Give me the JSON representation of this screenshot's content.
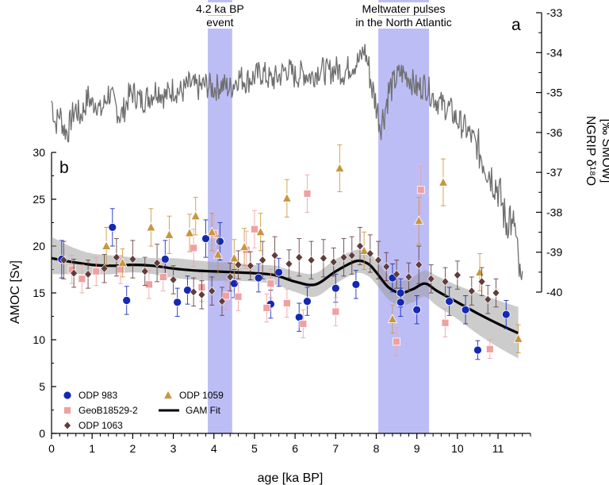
{
  "chart_data": {
    "type": "scatter",
    "panel_a": {
      "label": "a",
      "ylabel": "NGRIP δ¹⁸O\n[‰ SMOW]",
      "ylabel_line1": "NGRIP δ¹⁸O",
      "ylabel_line2": "[‰ SMOW]",
      "ylim": [
        -40,
        -33
      ],
      "yticks": [
        -33,
        -34,
        -35,
        -36,
        -37,
        -38,
        -39,
        -40
      ],
      "ytick_labels": [
        "-33",
        "-34",
        "-35",
        "-36",
        "-37",
        "-38",
        "-39",
        "-40"
      ],
      "series_color": "#6e6e6e",
      "anchors": [
        [
          0.0,
          -35.2
        ],
        [
          0.1,
          -35.8
        ],
        [
          0.2,
          -35.5
        ],
        [
          0.3,
          -35.9
        ],
        [
          0.4,
          -36.0
        ],
        [
          0.5,
          -35.6
        ],
        [
          0.6,
          -35.4
        ],
        [
          0.7,
          -35.6
        ],
        [
          0.8,
          -35.4
        ],
        [
          0.9,
          -35.1
        ],
        [
          1.0,
          -35.3
        ],
        [
          1.1,
          -35.2
        ],
        [
          1.2,
          -35.5
        ],
        [
          1.3,
          -35.3
        ],
        [
          1.4,
          -35.0
        ],
        [
          1.5,
          -35.2
        ],
        [
          1.6,
          -35.4
        ],
        [
          1.7,
          -35.6
        ],
        [
          1.8,
          -35.4
        ],
        [
          1.9,
          -35.1
        ],
        [
          2.0,
          -35.0
        ],
        [
          2.2,
          -35.2
        ],
        [
          2.4,
          -35.1
        ],
        [
          2.6,
          -34.9
        ],
        [
          2.8,
          -35.1
        ],
        [
          3.0,
          -34.9
        ],
        [
          3.2,
          -35.0
        ],
        [
          3.4,
          -34.8
        ],
        [
          3.6,
          -34.9
        ],
        [
          3.8,
          -34.8
        ],
        [
          4.0,
          -34.9
        ],
        [
          4.2,
          -34.8
        ],
        [
          4.4,
          -34.9
        ],
        [
          4.6,
          -34.6
        ],
        [
          4.8,
          -34.7
        ],
        [
          5.0,
          -34.6
        ],
        [
          5.2,
          -34.5
        ],
        [
          5.4,
          -34.7
        ],
        [
          5.6,
          -34.6
        ],
        [
          5.8,
          -34.4
        ],
        [
          6.0,
          -34.6
        ],
        [
          6.2,
          -34.5
        ],
        [
          6.4,
          -34.6
        ],
        [
          6.6,
          -34.4
        ],
        [
          6.8,
          -34.5
        ],
        [
          7.0,
          -34.4
        ],
        [
          7.2,
          -34.5
        ],
        [
          7.4,
          -34.3
        ],
        [
          7.6,
          -34.2
        ],
        [
          7.7,
          -33.9
        ],
        [
          7.8,
          -34.3
        ],
        [
          7.9,
          -34.9
        ],
        [
          8.0,
          -35.3
        ],
        [
          8.1,
          -35.8
        ],
        [
          8.2,
          -35.5
        ],
        [
          8.3,
          -35.0
        ],
        [
          8.4,
          -34.8
        ],
        [
          8.6,
          -34.5
        ],
        [
          8.8,
          -34.6
        ],
        [
          9.0,
          -34.9
        ],
        [
          9.2,
          -34.8
        ],
        [
          9.4,
          -35.1
        ],
        [
          9.6,
          -35.3
        ],
        [
          9.8,
          -35.4
        ],
        [
          10.0,
          -35.7
        ],
        [
          10.2,
          -35.9
        ],
        [
          10.4,
          -36.2
        ],
        [
          10.6,
          -36.6
        ],
        [
          10.8,
          -37.0
        ],
        [
          11.0,
          -37.4
        ],
        [
          11.1,
          -37.8
        ],
        [
          11.2,
          -38.3
        ],
        [
          11.3,
          -38.0
        ],
        [
          11.35,
          -38.6
        ],
        [
          11.4,
          -38.2
        ],
        [
          11.45,
          -38.8
        ],
        [
          11.5,
          -39.3
        ],
        [
          11.55,
          -39.8
        ],
        [
          11.6,
          -40.0
        ]
      ]
    },
    "panel_b": {
      "label": "b",
      "xlabel": "age [ka BP]",
      "ylabel": "AMOC [Sv]",
      "xlim": [
        0,
        11.8
      ],
      "ylim": [
        0,
        30
      ],
      "xticks": [
        0,
        1,
        2,
        3,
        4,
        5,
        6,
        7,
        8,
        9,
        10,
        11
      ],
      "xtick_labels": [
        "0",
        "1",
        "2",
        "3",
        "4",
        "5",
        "6",
        "7",
        "8",
        "9",
        "10",
        "11"
      ],
      "yticks": [
        0,
        5,
        10,
        15,
        20,
        25,
        30
      ],
      "ytick_labels": [
        "0",
        "5",
        "10",
        "15",
        "20",
        "25",
        "30"
      ],
      "bands": [
        {
          "label_line1": "4.2 ka BP",
          "label_line2": "event",
          "x0": 3.85,
          "x1": 4.45,
          "color": "#b9b9f5"
        },
        {
          "label_line1": "Meltwater pulses",
          "label_line2": "in the North Atlantic",
          "x0": 8.05,
          "x1": 9.3,
          "color": "#b9b9f5"
        }
      ],
      "series": [
        {
          "name": "ODP 983",
          "marker": "circle",
          "color": "#1428b4",
          "points": [
            [
              0.25,
              18.6,
              2.0
            ],
            [
              1.5,
              22.0,
              2.0
            ],
            [
              1.85,
              14.2,
              1.5
            ],
            [
              2.8,
              18.6,
              2.0
            ],
            [
              3.1,
              14.0,
              1.5
            ],
            [
              3.35,
              15.3,
              1.5
            ],
            [
              3.8,
              20.8,
              2.0
            ],
            [
              4.15,
              20.5,
              2.0
            ],
            [
              4.5,
              16.0,
              1.5
            ],
            [
              5.1,
              16.6,
              1.5
            ],
            [
              5.4,
              13.8,
              1.5
            ],
            [
              5.6,
              17.2,
              1.5
            ],
            [
              6.1,
              12.4,
              1.5
            ],
            [
              6.3,
              14.1,
              1.5
            ],
            [
              7.0,
              15.5,
              1.5
            ],
            [
              7.5,
              15.9,
              1.5
            ],
            [
              8.4,
              16.6,
              1.5
            ],
            [
              8.6,
              15.0,
              1.5
            ],
            [
              8.6,
              14.0,
              1.5
            ],
            [
              9.0,
              13.2,
              1.5
            ],
            [
              9.8,
              14.1,
              1.5
            ],
            [
              10.2,
              13.2,
              1.5
            ],
            [
              10.5,
              8.9,
              1.0
            ],
            [
              11.2,
              12.7,
              1.5
            ]
          ]
        },
        {
          "name": "GeoB18529-2",
          "marker": "square",
          "color": "#f0a0a0",
          "points": [
            [
              0.5,
              17.5,
              1.5
            ],
            [
              0.75,
              16.5,
              1.5
            ],
            [
              1.1,
              17.3,
              1.5
            ],
            [
              1.7,
              17.5,
              1.5
            ],
            [
              2.4,
              15.9,
              1.5
            ],
            [
              2.75,
              16.7,
              1.5
            ],
            [
              3.5,
              19.8,
              2.0
            ],
            [
              3.7,
              15.6,
              1.5
            ],
            [
              4.0,
              21.3,
              2.0
            ],
            [
              4.3,
              14.7,
              1.5
            ],
            [
              4.6,
              14.6,
              1.5
            ],
            [
              4.8,
              19.6,
              2.0
            ],
            [
              5.0,
              21.8,
              2.0
            ],
            [
              5.3,
              13.4,
              1.5
            ],
            [
              5.4,
              16.0,
              1.5
            ],
            [
              5.8,
              13.9,
              1.5
            ],
            [
              6.2,
              11.7,
              1.5
            ],
            [
              6.3,
              25.6,
              2.0
            ],
            [
              7.0,
              13.0,
              1.5
            ],
            [
              8.5,
              9.8,
              1.5
            ],
            [
              9.1,
              26.0,
              2.5
            ],
            [
              9.7,
              11.8,
              1.5
            ],
            [
              10.8,
              9.0,
              1.0
            ]
          ]
        },
        {
          "name": "ODP 1059",
          "marker": "triangle",
          "color": "#c8963c",
          "points": [
            [
              1.35,
              20.0,
              2.0
            ],
            [
              1.75,
              18.2,
              1.5
            ],
            [
              2.45,
              22.0,
              2.0
            ],
            [
              2.9,
              21.2,
              2.0
            ],
            [
              3.4,
              21.4,
              2.0
            ],
            [
              3.55,
              23.2,
              2.0
            ],
            [
              3.95,
              21.5,
              2.0
            ],
            [
              4.1,
              19.1,
              2.0
            ],
            [
              4.5,
              18.7,
              2.0
            ],
            [
              4.75,
              19.9,
              2.0
            ],
            [
              5.15,
              21.5,
              2.0
            ],
            [
              5.8,
              25.1,
              2.0
            ],
            [
              7.1,
              28.3,
              2.5
            ],
            [
              7.7,
              19.5,
              2.0
            ],
            [
              8.4,
              12.2,
              1.5
            ],
            [
              9.05,
              22.7,
              2.5
            ],
            [
              9.65,
              26.8,
              2.5
            ],
            [
              10.55,
              17.2,
              2.0
            ],
            [
              11.5,
              10.1,
              1.5
            ]
          ]
        },
        {
          "name": "ODP 1063",
          "marker": "diamond",
          "color": "#623c3c",
          "points": [
            [
              0.3,
              18.5,
              2.0
            ],
            [
              0.55,
              17.1,
              1.5
            ],
            [
              0.9,
              17.0,
              1.5
            ],
            [
              1.3,
              17.6,
              1.5
            ],
            [
              1.6,
              18.8,
              2.0
            ],
            [
              2.0,
              18.6,
              2.0
            ],
            [
              2.3,
              17.3,
              1.5
            ],
            [
              2.6,
              18.2,
              2.0
            ],
            [
              3.0,
              16.4,
              1.5
            ],
            [
              3.5,
              15.1,
              1.5
            ],
            [
              3.7,
              14.8,
              1.5
            ],
            [
              3.95,
              15.2,
              1.5
            ],
            [
              4.2,
              14.1,
              1.5
            ],
            [
              4.4,
              16.7,
              1.5
            ],
            [
              4.6,
              18.0,
              1.5
            ],
            [
              4.9,
              17.9,
              1.5
            ],
            [
              5.2,
              18.5,
              2.0
            ],
            [
              5.5,
              19.0,
              2.0
            ],
            [
              5.85,
              18.1,
              1.5
            ],
            [
              6.1,
              18.8,
              2.0
            ],
            [
              6.4,
              18.5,
              2.0
            ],
            [
              6.7,
              18.7,
              2.0
            ],
            [
              6.95,
              18.3,
              1.5
            ],
            [
              7.2,
              18.8,
              2.0
            ],
            [
              7.4,
              19.0,
              2.0
            ],
            [
              7.6,
              20.0,
              2.0
            ],
            [
              7.85,
              19.2,
              2.0
            ],
            [
              8.05,
              18.5,
              2.0
            ],
            [
              8.25,
              17.8,
              1.5
            ],
            [
              8.5,
              17.0,
              1.5
            ],
            [
              8.8,
              16.7,
              1.5
            ],
            [
              9.05,
              18.0,
              2.0
            ],
            [
              9.35,
              16.5,
              1.5
            ],
            [
              9.7,
              16.2,
              1.5
            ],
            [
              10.0,
              16.9,
              1.5
            ],
            [
              10.35,
              15.2,
              1.5
            ],
            [
              10.6,
              16.2,
              1.5
            ],
            [
              10.75,
              14.3,
              1.5
            ],
            [
              10.95,
              15.0,
              1.5
            ]
          ]
        }
      ],
      "gam_fit": {
        "name": "GAM Fit",
        "color": "#000000",
        "x": [
          0.0,
          0.5,
          1.0,
          1.5,
          2.0,
          2.5,
          3.0,
          3.5,
          4.0,
          4.5,
          5.0,
          5.5,
          6.0,
          6.5,
          7.0,
          7.5,
          7.8,
          8.0,
          8.3,
          8.6,
          8.9,
          9.2,
          9.5,
          10.0,
          10.5,
          11.0,
          11.5
        ],
        "y": [
          18.7,
          18.3,
          18.0,
          17.9,
          18.0,
          17.9,
          17.6,
          17.4,
          17.3,
          17.2,
          17.1,
          16.9,
          16.2,
          15.9,
          17.3,
          18.4,
          18.1,
          17.2,
          15.6,
          15.0,
          15.4,
          16.0,
          15.2,
          14.0,
          12.8,
          11.7,
          10.7
        ],
        "band_lower": [
          17.0,
          17.0,
          17.0,
          17.0,
          17.2,
          17.0,
          16.6,
          16.4,
          16.3,
          16.3,
          16.2,
          15.9,
          15.1,
          14.6,
          16.0,
          17.1,
          16.8,
          15.9,
          14.3,
          13.7,
          14.0,
          14.6,
          13.6,
          12.2,
          10.6,
          9.2,
          8.0
        ],
        "band_upper": [
          21.0,
          19.9,
          19.2,
          19.0,
          18.8,
          18.7,
          18.7,
          18.5,
          18.3,
          18.2,
          18.0,
          17.9,
          17.3,
          17.1,
          18.6,
          19.6,
          19.4,
          18.5,
          16.9,
          16.3,
          16.7,
          17.4,
          16.8,
          15.8,
          15.0,
          14.2,
          13.5
        ]
      },
      "legend": {
        "placement": "bottom-left",
        "entries": [
          {
            "label": "ODP 983",
            "marker": "circle"
          },
          {
            "label": "GeoB18529-2",
            "marker": "square"
          },
          {
            "label": "ODP 1063",
            "marker": "diamond"
          },
          {
            "label": "ODP 1059",
            "marker": "triangle"
          },
          {
            "label": "GAM Fit",
            "marker": "line"
          }
        ]
      }
    },
    "grid": false
  }
}
